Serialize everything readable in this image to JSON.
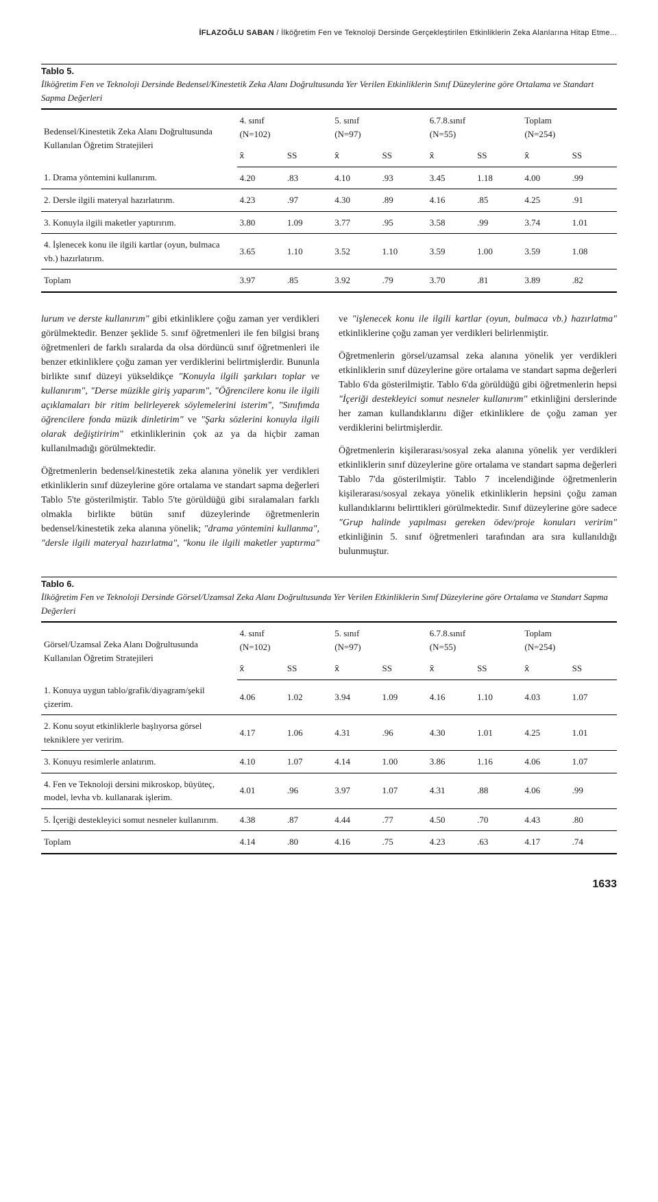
{
  "running_head": {
    "author": "İFLAZOĞLU SABAN",
    "rest": " / İlköğretim Fen ve Teknoloji Dersinde Gerçekleştirilen Etkinliklerin Zeka Alanlarına Hitap Etme..."
  },
  "xbar_glyph": "x̄",
  "ss_label": "SS",
  "tablo5": {
    "label": "Tablo 5.",
    "caption": "İlköğretim Fen ve Teknoloji Dersinde Bedensel/Kinestetik Zeka Alanı Doğrultusunda Yer Verilen Etkinliklerin Sınıf Düzeylerine göre Ortalama ve Standart Sapma Değerleri",
    "rowhead": "Bedensel/Kinestetik Zeka Alanı Doğrultusunda Kullanılan Öğretim Stratejileri",
    "groups": [
      {
        "label": "4. sınıf",
        "n": "(N=102)"
      },
      {
        "label": "5. sınıf",
        "n": "(N=97)"
      },
      {
        "label": "6.7.8.sınıf",
        "n": "(N=55)"
      },
      {
        "label": "Toplam",
        "n": "(N=254)"
      }
    ],
    "rows": [
      {
        "label": "1. Drama yöntemini kullanırım.",
        "cells": [
          "4.20",
          ".83",
          "4.10",
          ".93",
          "3.45",
          "1.18",
          "4.00",
          ".99"
        ]
      },
      {
        "label": "2. Dersle ilgili materyal hazırlatırım.",
        "cells": [
          "4.23",
          ".97",
          "4.30",
          ".89",
          "4.16",
          ".85",
          "4.25",
          ".91"
        ]
      },
      {
        "label": "3. Konuyla ilgili maketler yaptırırım.",
        "cells": [
          "3.80",
          "1.09",
          "3.77",
          ".95",
          "3.58",
          ".99",
          "3.74",
          "1.01"
        ]
      },
      {
        "label": "4. İşlenecek konu ile ilgili kartlar (oyun, bulmaca vb.) hazırlatırım.",
        "cells": [
          "3.65",
          "1.10",
          "3.52",
          "1.10",
          "3.59",
          "1.00",
          "3.59",
          "1.08"
        ]
      },
      {
        "label": "Toplam",
        "cells": [
          "3.97",
          ".85",
          "3.92",
          ".79",
          "3.70",
          ".81",
          "3.89",
          ".82"
        ]
      }
    ]
  },
  "body": {
    "p1_a": "lurum ve derste kullanırım\"",
    "p1_b": " gibi etkinliklere çoğu zaman yer verdikleri görülmektedir. Benzer şeklide 5. sınıf öğretmenleri ile fen bilgisi branş öğretmenleri de farklı sıralarda da olsa dördüncü sınıf öğretmenleri ile benzer etkinliklere çoğu zaman yer verdiklerini belirtmişlerdir. Bununla birlikte sınıf düzeyi yükseldikçe ",
    "p1_c": "\"Konuyla ilgili şarkıları toplar ve kullanırım\", \"Derse müzikle giriş yaparım\", \"Öğrencilere konu ile ilgili açıklamaları bir ritim belirleyerek söylemelerini isterim\", \"Sınıfımda öğrencilere fonda müzik dinletirim\"",
    "p1_d": " ve ",
    "p1_e": "\"Şarkı sözlerini konuyla ilgili olarak değiştiririm\"",
    "p1_f": " etkinliklerinin çok az ya da hiçbir zaman kullanılmadığı görülmektedir.",
    "p2_a": "Öğretmenlerin bedensel/kinestetik zeka alanına yönelik yer verdikleri etkinliklerin sınıf düzeylerine göre ortalama ve standart sapma değerleri Tablo 5'te gösterilmiştir. Tablo 5'te görüldüğü gibi sıralamaları farklı olmakla birlikte bütün sınıf düzeylerinde öğretmenlerin bedensel/kinestetik zeka alanına yönelik; ",
    "p2_b": "\"drama yöntemini kullanma\", \"dersle ilgili materyal hazırlatma\", \"konu ile ilgili maketler yaptırma\"",
    "p2_c": " ve ",
    "p2_d": "\"işlenecek konu ile ilgili kartlar (oyun, bulmaca vb.) hazırlatma\"",
    "p2_e": " etkinliklerine çoğu zaman yer verdikleri belirlenmiştir.",
    "p3_a": "Öğretmenlerin görsel/uzamsal zeka alanına yönelik yer verdikleri etkinliklerin sınıf düzeylerine göre ortalama ve standart sapma değerleri Tablo 6'da gösterilmiştir. Tablo 6'da görüldüğü gibi öğretmenlerin hepsi ",
    "p3_b": "\"İçeriği destekleyici somut nesneler kullanırım\"",
    "p3_c": " etkinliğini derslerinde her zaman kullandıklarını diğer etkinliklere de çoğu zaman yer verdiklerini belirtmişlerdir.",
    "p4_a": "Öğretmenlerin kişilerarası/sosyal zeka alanına yönelik yer verdikleri etkinliklerin sınıf düzeylerine göre ortalama ve standart sapma değerleri Tablo 7'da gösterilmiştir. Tablo 7 incelendiğinde öğretmenlerin kişilerarası/sosyal zekaya yönelik etkinliklerin hepsini çoğu zaman kullandıklarını belirttikleri görülmektedir. Sınıf düzeylerine göre sadece ",
    "p4_b": "\"Grup halinde yapılması gereken ödev/proje konuları veririm\"",
    "p4_c": " etkinliğinin 5. sınıf öğretmenleri tarafından ara sıra kullanıldığı bulunmuştur."
  },
  "tablo6": {
    "label": "Tablo 6.",
    "caption": "İlköğretim Fen ve Teknoloji Dersinde Görsel/Uzamsal Zeka Alanı Doğrultusunda Yer Verilen Etkinliklerin Sınıf Düzeylerine göre Ortalama ve Standart Sapma Değerleri",
    "rowhead": "Görsel/Uzamsal Zeka Alanı Doğrultusunda Kullanılan Öğretim Stratejileri",
    "groups": [
      {
        "label": "4. sınıf",
        "n": "(N=102)"
      },
      {
        "label": "5. sınıf",
        "n": "(N=97)"
      },
      {
        "label": "6.7.8.sınıf",
        "n": "(N=55)"
      },
      {
        "label": "Toplam",
        "n": "(N=254)"
      }
    ],
    "rows": [
      {
        "label": "1. Konuya uygun tablo/grafik/diyagram/şekil çizerim.",
        "cells": [
          "4.06",
          "1.02",
          "3.94",
          "1.09",
          "4.16",
          "1.10",
          "4.03",
          "1.07"
        ]
      },
      {
        "label": "2. Konu soyut etkinliklerle başlıyorsa görsel tekniklere yer veririm.",
        "cells": [
          "4.17",
          "1.06",
          "4.31",
          ".96",
          "4.30",
          "1.01",
          "4.25",
          "1.01"
        ]
      },
      {
        "label": "3. Konuyu resimlerle anlatırım.",
        "cells": [
          "4.10",
          "1.07",
          "4.14",
          "1.00",
          "3.86",
          "1.16",
          "4.06",
          "1.07"
        ]
      },
      {
        "label": "4. Fen ve Teknoloji dersini mikroskop, büyüteç, model, levha vb. kullanarak işlerim.",
        "cells": [
          "4.01",
          ".96",
          "3.97",
          "1.07",
          "4.31",
          ".88",
          "4.06",
          ".99"
        ]
      },
      {
        "label": "5. İçeriği destekleyici somut nesneler kullanırım.",
        "cells": [
          "4.38",
          ".87",
          "4.44",
          ".77",
          "4.50",
          ".70",
          "4.43",
          ".80"
        ]
      },
      {
        "label": "Toplam",
        "cells": [
          "4.14",
          ".80",
          "4.16",
          ".75",
          "4.23",
          ".63",
          "4.17",
          ".74"
        ]
      }
    ]
  },
  "page_number": "1633"
}
